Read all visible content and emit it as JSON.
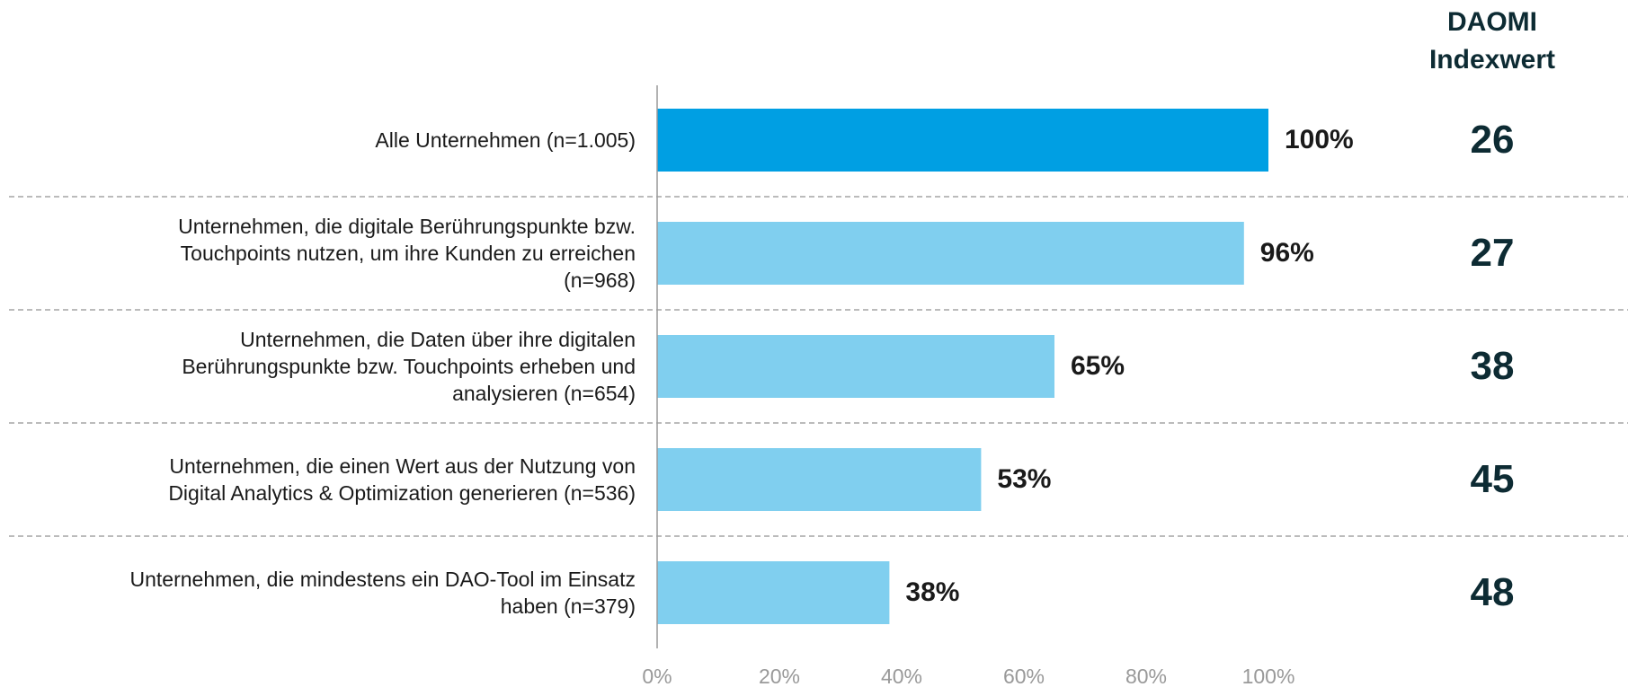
{
  "chart_data": {
    "type": "bar",
    "orientation": "horizontal",
    "categories": [
      "Alle Unternehmen (n=1.005)",
      "Unternehmen, die digitale Berührungspunkte bzw.\nTouchpoints nutzen, um ihre Kunden zu erreichen\n(n=968)",
      "Unternehmen, die Daten über ihre digitalen\nBerührungspunkte bzw. Touchpoints erheben und\nanalysieren (n=654)",
      "Unternehmen, die einen Wert aus der Nutzung von\nDigital Analytics & Optimization generieren (n=536)",
      "Unternehmen, die mindestens ein DAO-Tool im Einsatz\nhaben (n=379)"
    ],
    "values": [
      100,
      96,
      65,
      53,
      38
    ],
    "value_labels": [
      "100%",
      "96%",
      "65%",
      "53%",
      "38%"
    ],
    "colors": [
      "#009fe3",
      "#80cfef",
      "#80cfef",
      "#80cfef",
      "#80cfef"
    ],
    "xlim": [
      0,
      100
    ],
    "xticks": [
      {
        "value": 0,
        "label": "0%"
      },
      {
        "value": 20,
        "label": "20%"
      },
      {
        "value": 40,
        "label": "40%"
      },
      {
        "value": 60,
        "label": "60%"
      },
      {
        "value": 80,
        "label": "80%"
      },
      {
        "value": 100,
        "label": "100%"
      }
    ],
    "index_header": "DAOMI\nIndexwert",
    "index_values": [
      26,
      27,
      38,
      45,
      48
    ]
  }
}
